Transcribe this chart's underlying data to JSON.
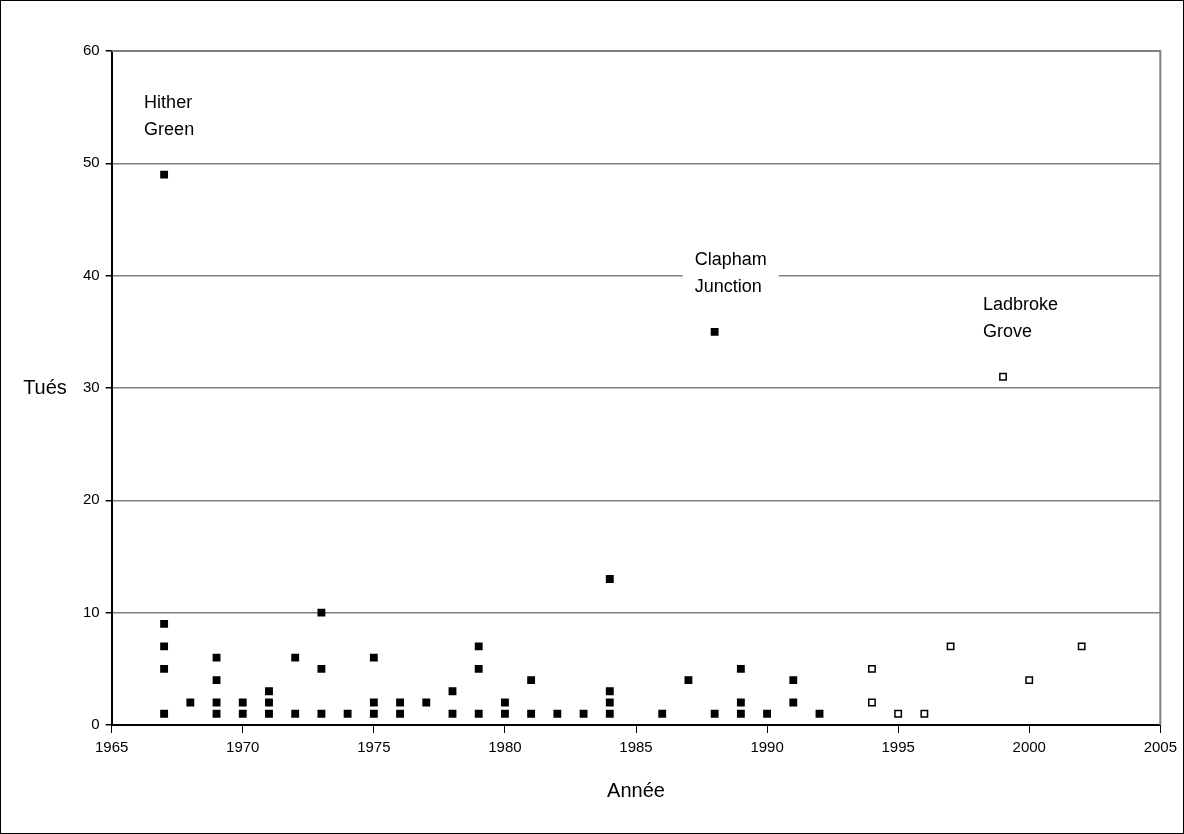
{
  "chart_data": {
    "type": "scatter",
    "xlabel": "Année",
    "ylabel": "Tués",
    "xlim": [
      1965,
      2005
    ],
    "xticks": [
      1965,
      1970,
      1975,
      1980,
      1985,
      1990,
      1995,
      2000,
      2005
    ],
    "ylim": [
      0,
      60
    ],
    "yticks": [
      0,
      10,
      20,
      30,
      40,
      50,
      60
    ],
    "grid": "y",
    "legend": false,
    "marker": "square",
    "series": [
      {
        "color": "#000000",
        "x": [
          1967,
          1967,
          1967,
          1967,
          1967,
          1968,
          1969,
          1969,
          1969,
          1969,
          1970,
          1970,
          1971,
          1971,
          1971,
          1972,
          1972,
          1973,
          1973,
          1973,
          1974,
          1975,
          1975,
          1975,
          1976,
          1976,
          1977,
          1978,
          1978,
          1979,
          1979,
          1979,
          1980,
          1980,
          1981,
          1981,
          1982,
          1983,
          1984,
          1984,
          1984,
          1984,
          1986,
          1987,
          1988,
          1988,
          1989,
          1989,
          1989,
          1990,
          1991,
          1991,
          1992
        ],
        "values": [
          1,
          5,
          7,
          9,
          49,
          2,
          1,
          2,
          4,
          6,
          1,
          2,
          1,
          2,
          3,
          1,
          6,
          1,
          5,
          10,
          1,
          1,
          2,
          6,
          1,
          2,
          2,
          1,
          3,
          1,
          5,
          7,
          1,
          2,
          1,
          4,
          1,
          1,
          1,
          2,
          3,
          13,
          1,
          4,
          1,
          35,
          1,
          2,
          5,
          1,
          2,
          4,
          1
        ]
      },
      {
        "color": "#ffffff",
        "x": [
          1994,
          1994,
          1995,
          1996,
          1997,
          1999,
          2000,
          2002
        ],
        "values": [
          2,
          5,
          1,
          1,
          7,
          31,
          4,
          7
        ]
      }
    ],
    "annotations": [
      {
        "text": "Hither Green",
        "x": 1967,
        "y": 49
      },
      {
        "text": "Clapham Junction",
        "x": 1988,
        "y": 35
      },
      {
        "text": "Ladbroke Grove",
        "x": 1999,
        "y": 31
      }
    ]
  }
}
